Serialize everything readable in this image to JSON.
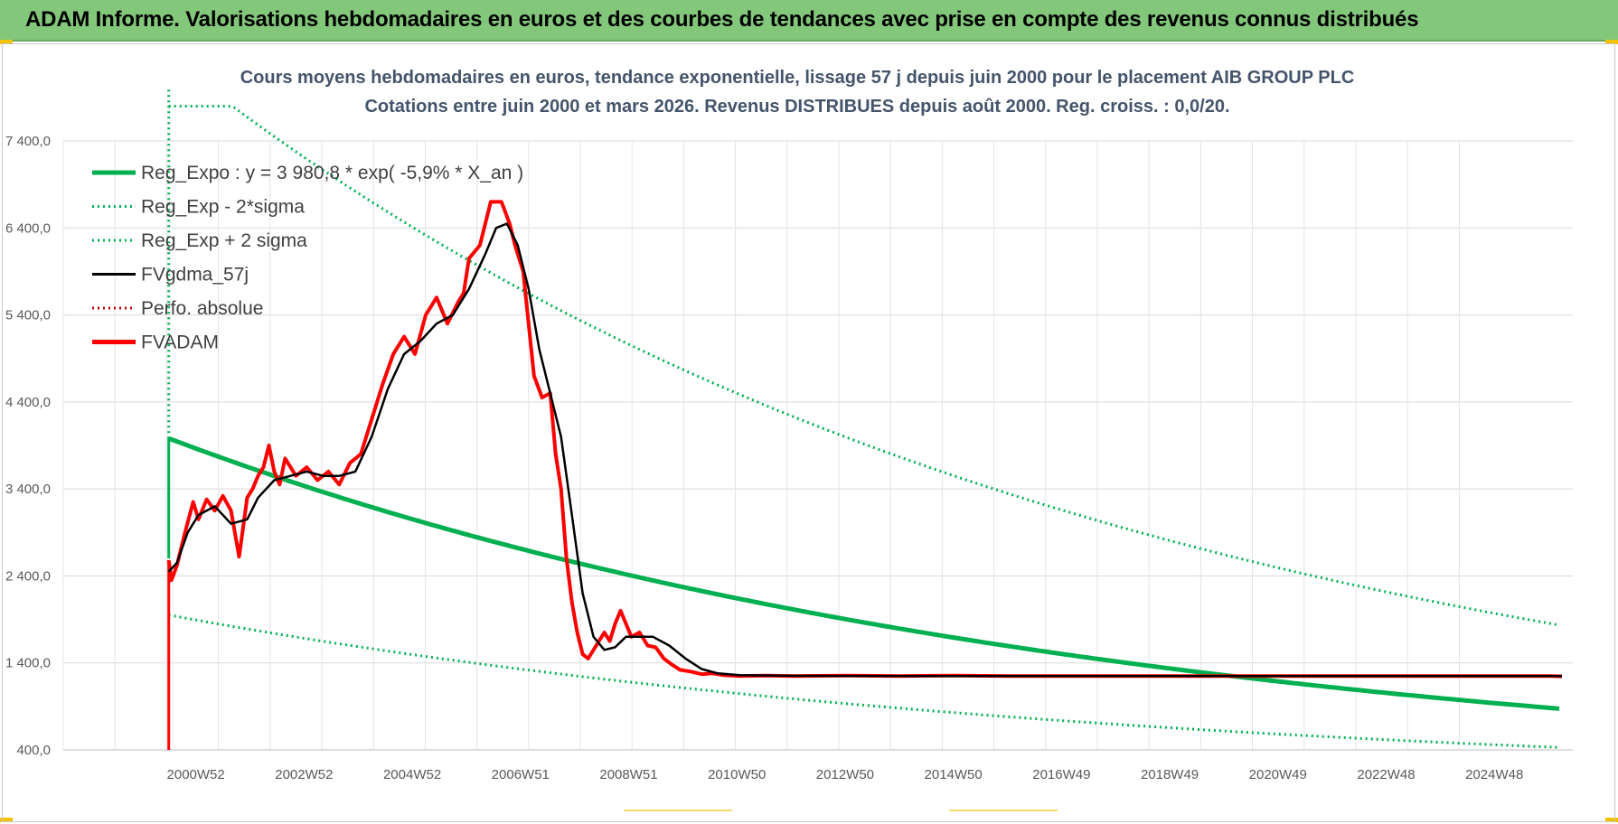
{
  "banner": {
    "title": "ADAM Informe. Valorisations hebdomadaires en euros et des courbes de tendances avec prise en compte des revenus connus distribués"
  },
  "colors": {
    "banner_bg": "#83c77b",
    "reg_expo": "#00b050",
    "gdma": "#000000",
    "fvadam": "#ff0000",
    "perfo": "#c00000"
  },
  "chart_data": {
    "type": "line",
    "title": "Cours moyens hebdomadaires en euros, tendance exponentielle, lissage 57 j depuis juin 2000 pour le placement AIB GROUP PLC",
    "subtitle": "Cotations entre juin 2000 et mars 2026. Revenus DISTRIBUES depuis août 2000. Reg. croiss. : 0,0/20.",
    "ylim": [
      400,
      7400
    ],
    "yticks": [
      "7 400,0",
      "6 400,0",
      "5 400,0",
      "4 400,0",
      "3 400,0",
      "2 400,0",
      "1 400,0",
      "400,0"
    ],
    "xticks": [
      "2000W52",
      "2002W52",
      "2004W52",
      "2006W51",
      "2008W51",
      "2010W50",
      "2012W50",
      "2014W50",
      "2016W49",
      "2018W49",
      "2020W49",
      "2022W48",
      "2024W48"
    ],
    "grid": true,
    "legend_position": "top-left",
    "legend": [
      {
        "label": "Reg_Expo : y = 3 980,8 * exp( -5,9% *  X_an )",
        "style": "solid-thick",
        "color": "#00b050"
      },
      {
        "label": "Reg_Exp - 2*sigma",
        "style": "dotted",
        "color": "#00b050"
      },
      {
        "label": "Reg_Exp + 2 sigma",
        "style": "dotted",
        "color": "#00b050"
      },
      {
        "label": "FVgdma_57j",
        "style": "solid",
        "color": "#000000"
      },
      {
        "label": "Perfo. absolue",
        "style": "dotted",
        "color": "#c00000"
      },
      {
        "label": "FVADAM",
        "style": "solid-thick",
        "color": "#ff0000"
      }
    ],
    "reg_expo": {
      "a": 3980.8,
      "rate": -0.059,
      "x_start": 2000.45,
      "x_end": 2026.2
    },
    "sigma_band": {
      "lower_factor": 0.49,
      "upper_factor": 2.1
    },
    "x_range": [
      1998.5,
      2026.4
    ],
    "series": [
      {
        "name": "FVADAM",
        "x": [
          2000.45,
          2000.5,
          2000.6,
          2000.75,
          2000.9,
          2001.0,
          2001.15,
          2001.3,
          2001.45,
          2001.6,
          2001.75,
          2001.9,
          2002.0,
          2002.1,
          2002.2,
          2002.3,
          2002.4,
          2002.5,
          2002.6,
          2002.8,
          2003.0,
          2003.2,
          2003.4,
          2003.6,
          2003.8,
          2004.0,
          2004.2,
          2004.4,
          2004.6,
          2004.8,
          2005.0,
          2005.2,
          2005.4,
          2005.6,
          2005.8,
          2005.9,
          2006.0,
          2006.2,
          2006.4,
          2006.6,
          2006.75,
          2006.85,
          2007.0,
          2007.1,
          2007.2,
          2007.35,
          2007.5,
          2007.6,
          2007.7,
          2007.8,
          2007.9,
          2008.0,
          2008.1,
          2008.2,
          2008.35,
          2008.5,
          2008.6,
          2008.7,
          2008.8,
          2009.0,
          2009.15,
          2009.3,
          2009.45,
          2009.6,
          2009.75,
          2009.9,
          2010.1,
          2010.3,
          2010.5,
          2010.7,
          2011.0,
          2011.5,
          2012.0,
          2013.0,
          2014.0,
          2015.0,
          2016.0,
          2017.0,
          2018.0,
          2019.0,
          2020.0,
          2021.0,
          2022.0,
          2023.0,
          2024.0,
          2025.0,
          2026.0,
          2026.2
        ],
        "y": [
          2580,
          2350,
          2520,
          2900,
          3250,
          3050,
          3280,
          3150,
          3320,
          3150,
          2620,
          3300,
          3400,
          3550,
          3650,
          3900,
          3600,
          3450,
          3750,
          3550,
          3650,
          3500,
          3600,
          3450,
          3700,
          3800,
          4200,
          4600,
          4950,
          5150,
          4950,
          5400,
          5600,
          5300,
          5550,
          5650,
          6050,
          6200,
          6700,
          6700,
          6450,
          6200,
          5900,
          5300,
          4700,
          4450,
          4500,
          3800,
          3400,
          2600,
          2100,
          1750,
          1500,
          1450,
          1600,
          1750,
          1650,
          1850,
          2000,
          1700,
          1750,
          1600,
          1580,
          1450,
          1380,
          1320,
          1300,
          1270,
          1280,
          1260,
          1250,
          1255,
          1250,
          1255,
          1250,
          1255,
          1250,
          1250,
          1250,
          1250,
          1250,
          1250,
          1250,
          1250,
          1250,
          1250,
          1250,
          1245
        ]
      },
      {
        "name": "FVgdma_57j",
        "x": [
          2000.45,
          2000.6,
          2000.8,
          2001.0,
          2001.3,
          2001.6,
          2001.9,
          2002.1,
          2002.4,
          2002.7,
          2003.0,
          2003.3,
          2003.6,
          2003.9,
          2004.2,
          2004.5,
          2004.8,
          2005.1,
          2005.4,
          2005.7,
          2006.0,
          2006.3,
          2006.5,
          2006.7,
          2006.9,
          2007.1,
          2007.3,
          2007.5,
          2007.7,
          2007.9,
          2008.1,
          2008.3,
          2008.5,
          2008.7,
          2008.9,
          2009.1,
          2009.4,
          2009.7,
          2010.0,
          2010.3,
          2010.6,
          2011.0,
          2012.0,
          2014.0,
          2016.0,
          2018.0,
          2020.0,
          2022.0,
          2024.0,
          2026.0,
          2026.2
        ],
        "y": [
          2450,
          2550,
          2900,
          3100,
          3200,
          3000,
          3050,
          3300,
          3500,
          3550,
          3600,
          3550,
          3550,
          3600,
          4000,
          4550,
          4950,
          5100,
          5300,
          5400,
          5700,
          6100,
          6400,
          6450,
          6200,
          5700,
          5000,
          4500,
          4000,
          3100,
          2200,
          1700,
          1550,
          1580,
          1700,
          1700,
          1700,
          1600,
          1450,
          1330,
          1280,
          1260,
          1252,
          1250,
          1250,
          1250,
          1250,
          1250,
          1250,
          1250,
          1250
        ]
      }
    ]
  }
}
